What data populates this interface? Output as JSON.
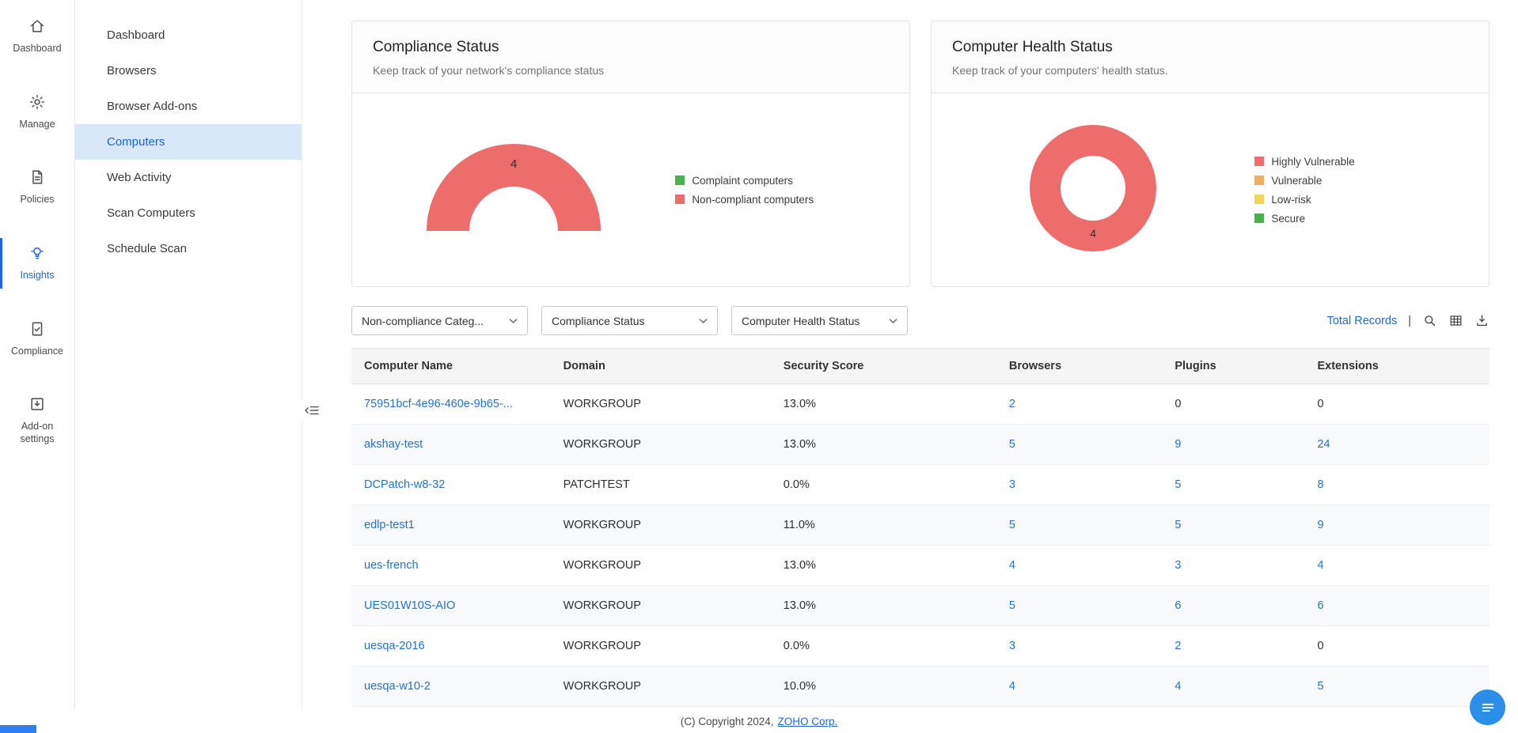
{
  "colors": {
    "accent": "#2168d8",
    "link": "#2673c4",
    "selected_item_bg": "#d8e8f9",
    "status_red": "#ed6d6d",
    "status_orange": "#efae68",
    "status_yellow": "#f2d35c",
    "status_green": "#4caf50",
    "fab_blue": "#2b8fe8"
  },
  "rail": {
    "items": [
      {
        "label": "Dashboard",
        "icon": "home-icon",
        "active": false
      },
      {
        "label": "Manage",
        "icon": "manage-icon",
        "active": false
      },
      {
        "label": "Policies",
        "icon": "policies-icon",
        "active": false
      },
      {
        "label": "Insights",
        "icon": "insights-icon",
        "active": true
      },
      {
        "label": "Compliance",
        "icon": "compliance-icon",
        "active": false
      },
      {
        "label": "Add-on settings",
        "icon": "addon-settings-icon",
        "active": false
      }
    ]
  },
  "sidebar": {
    "items": [
      {
        "label": "Dashboard",
        "active": false
      },
      {
        "label": "Browsers",
        "active": false
      },
      {
        "label": "Browser Add-ons",
        "active": false
      },
      {
        "label": "Computers",
        "active": true
      },
      {
        "label": "Web Activity",
        "active": false
      },
      {
        "label": "Scan Computers",
        "active": false
      },
      {
        "label": "Schedule Scan",
        "active": false
      }
    ]
  },
  "cards": {
    "compliance": {
      "title": "Compliance Status",
      "subtitle": "Keep track of your network's compliance status"
    },
    "health": {
      "title": "Computer Health Status",
      "subtitle": "Keep track of your computers' health status."
    }
  },
  "chart_data": [
    {
      "type": "pie",
      "variant": "half-donut",
      "title": "Compliance Status",
      "center_label": "4",
      "legend_position": "right",
      "segments": [
        {
          "label": "Complaint computers",
          "value": 0,
          "color": "#4caf50"
        },
        {
          "label": "Non-compliant computers",
          "value": 4,
          "color": "#ed6d6d"
        }
      ]
    },
    {
      "type": "pie",
      "variant": "donut",
      "title": "Computer Health Status",
      "center_label": "4",
      "legend_position": "right",
      "segments": [
        {
          "label": "Highly Vulnerable",
          "value": 4,
          "color": "#ed6d6d"
        },
        {
          "label": "Vulnerable",
          "value": 0,
          "color": "#efae68"
        },
        {
          "label": "Low-risk",
          "value": 0,
          "color": "#f2d35c"
        },
        {
          "label": "Secure",
          "value": 0,
          "color": "#4caf50"
        }
      ]
    }
  ],
  "filters": [
    {
      "label": "Non-compliance Categ..."
    },
    {
      "label": "Compliance Status"
    },
    {
      "label": "Computer Health Status"
    }
  ],
  "toolbar": {
    "total_records": "Total Records",
    "separator": "|"
  },
  "table": {
    "columns": [
      "Computer Name",
      "Domain",
      "Security Score",
      "Browsers",
      "Plugins",
      "Extensions"
    ],
    "rows": [
      {
        "name": "75951bcf-4e96-460e-9b65-...",
        "domain": "WORKGROUP",
        "score": "13.0%",
        "browsers": "2",
        "plugins": "0",
        "extensions": "0"
      },
      {
        "name": "akshay-test",
        "domain": "WORKGROUP",
        "score": "13.0%",
        "browsers": "5",
        "plugins": "9",
        "extensions": "24"
      },
      {
        "name": "DCPatch-w8-32",
        "domain": "PATCHTEST",
        "score": "0.0%",
        "browsers": "3",
        "plugins": "5",
        "extensions": "8"
      },
      {
        "name": "edlp-test1",
        "domain": "WORKGROUP",
        "score": "11.0%",
        "browsers": "5",
        "plugins": "5",
        "extensions": "9"
      },
      {
        "name": "ues-french",
        "domain": "WORKGROUP",
        "score": "13.0%",
        "browsers": "4",
        "plugins": "3",
        "extensions": "4"
      },
      {
        "name": "UES01W10S-AIO",
        "domain": "WORKGROUP",
        "score": "13.0%",
        "browsers": "5",
        "plugins": "6",
        "extensions": "6"
      },
      {
        "name": "uesqa-2016",
        "domain": "WORKGROUP",
        "score": "0.0%",
        "browsers": "3",
        "plugins": "2",
        "extensions": "0"
      },
      {
        "name": "uesqa-w10-2",
        "domain": "WORKGROUP",
        "score": "10.0%",
        "browsers": "4",
        "plugins": "4",
        "extensions": "5"
      }
    ]
  },
  "footer": {
    "copyright": "(C) Copyright 2024,",
    "link_label": "ZOHO Corp."
  }
}
